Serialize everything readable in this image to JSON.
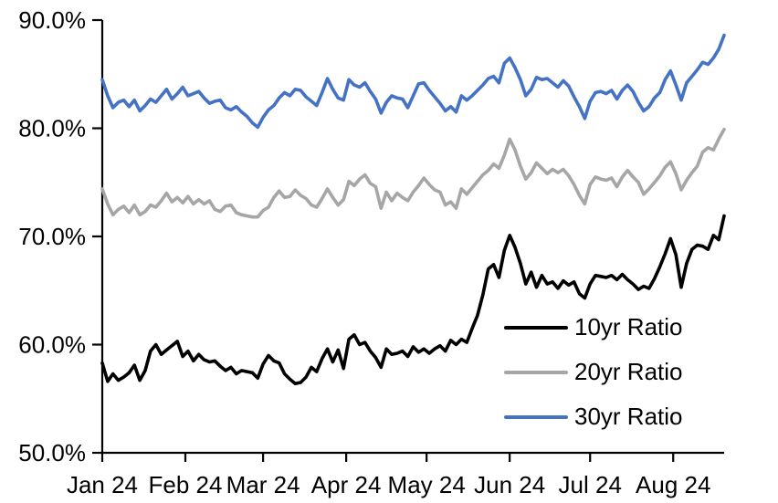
{
  "chart_data": {
    "type": "line",
    "title": "",
    "x_axis": {
      "tick_labels": [
        "Jan 24",
        "Feb 24",
        "Mar 24",
        "Apr 24",
        "May 24",
        "Jun 24",
        "Jul 24",
        "Aug 24"
      ],
      "tick_days": [
        0,
        31,
        60,
        91,
        121,
        152,
        182,
        213
      ],
      "total_days": 232
    },
    "y_axis": {
      "tick_labels": [
        "90.0%",
        "80.0%",
        "70.0%",
        "60.0%",
        "50.0%"
      ],
      "tick_values": [
        90,
        80,
        70,
        60,
        50
      ],
      "min": 50,
      "max": 90,
      "unit": "%"
    },
    "grid": "off",
    "legend_position": "inside-lower-right",
    "sample_step_days": 2,
    "series": [
      {
        "name": "10yr Ratio",
        "color": "#000000",
        "values": [
          58.3,
          56.6,
          57.3,
          56.7,
          57.0,
          57.4,
          58.1,
          56.7,
          57.6,
          59.4,
          60.0,
          59.1,
          59.5,
          59.9,
          60.3,
          58.9,
          59.4,
          58.5,
          59.1,
          58.6,
          58.4,
          58.5,
          58.0,
          57.6,
          57.9,
          57.3,
          57.6,
          57.5,
          57.4,
          56.9,
          58.2,
          59.0,
          58.5,
          58.3,
          57.3,
          56.8,
          56.4,
          56.5,
          57.0,
          57.9,
          57.5,
          58.7,
          59.6,
          58.4,
          59.5,
          57.8,
          60.5,
          60.9,
          60.0,
          60.2,
          59.4,
          58.8,
          57.9,
          59.6,
          59.1,
          59.2,
          59.4,
          58.9,
          59.8,
          59.3,
          59.6,
          59.2,
          59.6,
          59.9,
          59.4,
          60.4,
          60.0,
          60.5,
          60.2,
          61.5,
          62.7,
          64.6,
          67.0,
          67.4,
          66.2,
          68.7,
          70.1,
          69.0,
          67.5,
          65.6,
          66.7,
          65.3,
          66.4,
          65.6,
          65.8,
          65.2,
          65.9,
          65.5,
          65.8,
          64.7,
          64.3,
          65.6,
          66.4,
          66.3,
          66.2,
          66.4,
          66.0,
          66.5,
          66.0,
          65.6,
          65.1,
          65.4,
          65.2,
          66.1,
          67.2,
          68.4,
          69.8,
          68.3,
          65.3,
          67.5,
          68.8,
          69.2,
          69.1,
          68.8,
          70.1,
          69.7,
          71.9
        ]
      },
      {
        "name": "20yr Ratio",
        "color": "#A6A6A6",
        "values": [
          74.4,
          73.0,
          72.0,
          72.5,
          72.8,
          72.2,
          72.9,
          72.0,
          72.3,
          72.9,
          72.7,
          73.3,
          74.0,
          73.2,
          73.6,
          73.1,
          73.7,
          73.0,
          73.4,
          73.0,
          73.3,
          72.5,
          72.3,
          72.8,
          72.9,
          72.2,
          72.0,
          71.9,
          71.8,
          71.8,
          72.4,
          72.7,
          73.6,
          74.2,
          73.6,
          73.7,
          74.3,
          73.8,
          73.5,
          72.9,
          72.7,
          73.5,
          74.4,
          73.6,
          72.9,
          73.4,
          75.1,
          74.7,
          75.3,
          75.7,
          74.9,
          74.6,
          72.6,
          74.1,
          73.3,
          74.0,
          73.6,
          73.3,
          74.1,
          74.7,
          75.4,
          74.8,
          74.3,
          74.1,
          72.9,
          73.2,
          72.6,
          74.4,
          73.9,
          74.5,
          75.1,
          75.7,
          76.1,
          76.7,
          76.3,
          77.5,
          79.0,
          78.0,
          76.5,
          75.3,
          75.9,
          76.8,
          76.3,
          75.8,
          76.2,
          75.9,
          76.2,
          75.6,
          74.8,
          73.8,
          73.0,
          74.8,
          75.5,
          75.3,
          75.2,
          75.4,
          74.6,
          75.5,
          76.1,
          75.5,
          75.0,
          73.9,
          74.4,
          75.0,
          75.6,
          76.4,
          76.9,
          75.8,
          74.3,
          75.2,
          75.9,
          76.5,
          77.8,
          78.2,
          78.0,
          79.0,
          79.9
        ]
      },
      {
        "name": "30yr Ratio",
        "color": "#4472C4",
        "values": [
          84.5,
          83.0,
          81.9,
          82.4,
          82.6,
          82.0,
          82.6,
          81.6,
          82.1,
          82.7,
          82.4,
          83.0,
          83.6,
          82.7,
          83.2,
          83.8,
          83.0,
          83.2,
          83.4,
          82.8,
          82.3,
          82.5,
          82.6,
          81.9,
          81.7,
          82.0,
          81.5,
          81.1,
          80.5,
          80.1,
          81.0,
          81.7,
          82.1,
          82.8,
          83.3,
          83.0,
          83.6,
          83.5,
          82.9,
          82.5,
          82.1,
          83.3,
          84.6,
          83.6,
          82.8,
          82.6,
          84.5,
          84.0,
          83.8,
          84.2,
          83.4,
          82.7,
          81.4,
          82.4,
          83.0,
          82.8,
          82.7,
          81.9,
          83.0,
          84.1,
          84.2,
          83.5,
          82.9,
          82.3,
          81.6,
          82.0,
          81.5,
          83.0,
          82.6,
          83.0,
          83.5,
          84.0,
          84.6,
          84.8,
          84.2,
          86.0,
          86.5,
          85.6,
          84.5,
          83.0,
          83.6,
          84.7,
          84.5,
          84.6,
          84.2,
          83.8,
          84.4,
          83.9,
          82.9,
          82.0,
          80.9,
          82.5,
          83.3,
          83.4,
          83.2,
          83.5,
          82.7,
          83.5,
          84.0,
          83.4,
          82.4,
          81.6,
          82.0,
          82.8,
          83.3,
          84.5,
          85.3,
          84.0,
          82.6,
          84.2,
          84.8,
          85.4,
          86.1,
          85.9,
          86.5,
          87.3,
          88.6
        ]
      }
    ]
  }
}
